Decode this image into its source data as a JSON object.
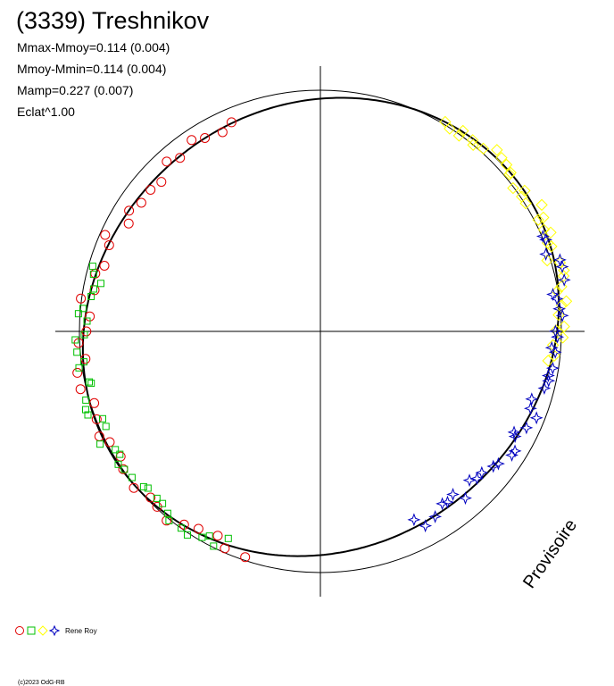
{
  "chart_data": {
    "type": "scatter",
    "title": "(3339) Treshnikov",
    "stats": [
      "Mmax-Mmoy=0.114 (0.004)",
      "Mmoy-Mmin=0.114 (0.004)",
      "Mamp=0.227 (0.007)",
      "Eclat^1.00"
    ],
    "watermark": "Provisoire",
    "legend": {
      "observer": "Rene Roy"
    },
    "copyright": "(c)2023 OdG-RB",
    "radial_scale": {
      "reference": "unit circle",
      "amplitude": 0.227
    },
    "series": [
      {
        "marker": "circle",
        "color": "#e00000",
        "phase_range": [
          0.06,
          0.45
        ]
      },
      {
        "marker": "square",
        "color": "#00c000",
        "phase_range": [
          0.2,
          0.44
        ]
      },
      {
        "marker": "diamond",
        "color": "#ffff00",
        "phase_range": [
          0.73,
          0.92
        ]
      },
      {
        "marker": "star",
        "color": "#0000c0",
        "phase_range": [
          0.57,
          0.82
        ]
      }
    ],
    "axes": {
      "crosshair": true
    },
    "legend_placement": "bottom-left"
  }
}
